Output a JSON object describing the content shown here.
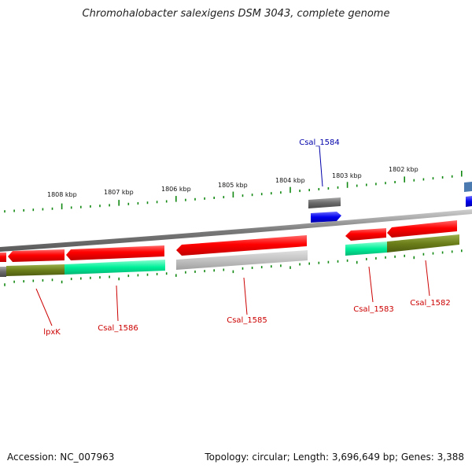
{
  "title": "Chromohalobacter salexigens DSM 3043, complete genome",
  "footer": {
    "accession": "Accession: NC_007963",
    "topology": "Topology: circular; Length: 3,696,649 bp; Genes: 3,388"
  },
  "colors": {
    "backbone": "#8c8c8c",
    "cds": "#ff1010",
    "gene": "#00ee99",
    "gene_dark": "#6b7e1a",
    "gray_feature": "#6a6a6a",
    "light_gray": "#c2c2c2",
    "blue": "#1010ee",
    "ticks": "#118811",
    "label_red": "#cc0000",
    "label_blue": "#0000aa"
  },
  "ticks": [
    {
      "label": "1808 kbp"
    },
    {
      "label": "1807 kbp"
    },
    {
      "label": "1806 kbp"
    },
    {
      "label": "1805 kbp"
    },
    {
      "label": "1804 kbp"
    },
    {
      "label": "1803 kbp"
    },
    {
      "label": "1802 kbp"
    }
  ],
  "labels": [
    {
      "text": "Csal_1584",
      "color": "blue"
    },
    {
      "text": "lpxK",
      "color": "red"
    },
    {
      "text": "Csal_1586",
      "color": "red"
    },
    {
      "text": "Csal_1585",
      "color": "red"
    },
    {
      "text": "Csal_1583",
      "color": "red"
    },
    {
      "text": "Csal_1582",
      "color": "red"
    }
  ]
}
